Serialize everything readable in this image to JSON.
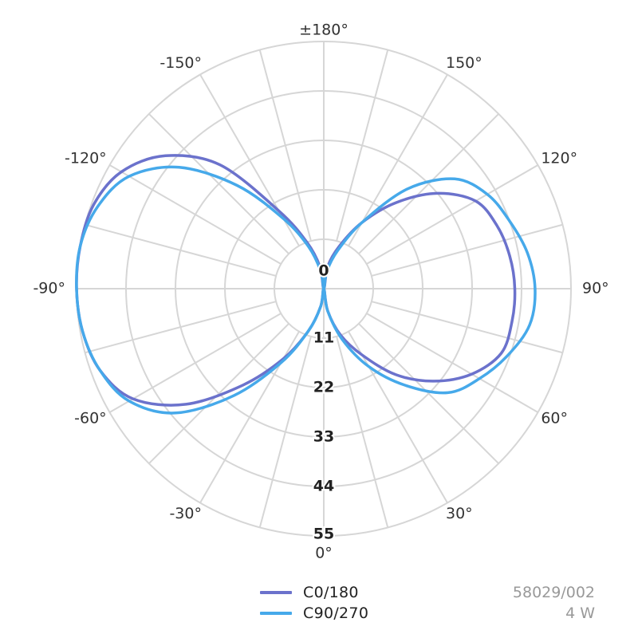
{
  "chart_data": {
    "type": "polar-line",
    "angle_labels": [
      {
        "angle": 180,
        "text": "±180°"
      },
      {
        "angle": 150,
        "text": "150°"
      },
      {
        "angle": 120,
        "text": "120°"
      },
      {
        "angle": 90,
        "text": "90°"
      },
      {
        "angle": 60,
        "text": "60°"
      },
      {
        "angle": 30,
        "text": "30°"
      },
      {
        "angle": 0,
        "text": "0°"
      },
      {
        "angle": -30,
        "text": "-30°"
      },
      {
        "angle": -60,
        "text": "-60°"
      },
      {
        "angle": -90,
        "text": "-90°"
      },
      {
        "angle": -120,
        "text": "-120°"
      },
      {
        "angle": -150,
        "text": "-150°"
      }
    ],
    "radial_ticks": [
      "0",
      "11",
      "22",
      "33",
      "44",
      "55"
    ],
    "r_max": 55,
    "grid": true,
    "series": [
      {
        "name": "C0/180",
        "color": "#6b72cc",
        "theta": [
          0,
          10,
          20,
          30,
          40,
          50,
          60,
          70,
          80,
          90,
          100,
          110,
          120,
          130,
          140,
          150,
          160,
          170,
          180,
          -170,
          -160,
          -150,
          -140,
          -130,
          -120,
          -110,
          -100,
          -90,
          -80,
          -70,
          -60,
          -50,
          -40,
          -30,
          -20,
          -10
        ],
        "r": [
          0,
          5,
          11,
          17,
          25,
          32,
          38,
          42,
          42.5,
          42.5,
          42,
          41,
          39,
          33,
          25,
          17,
          10,
          5,
          0,
          5,
          11,
          20,
          36,
          46,
          52,
          54.5,
          55,
          55,
          54.5,
          53,
          49,
          40,
          28,
          18,
          10,
          4
        ]
      },
      {
        "name": "C90/270",
        "color": "#46a9ea",
        "theta": [
          0,
          10,
          20,
          30,
          40,
          50,
          60,
          70,
          80,
          90,
          100,
          110,
          120,
          130,
          140,
          150,
          160,
          170,
          180,
          -170,
          -160,
          -150,
          -140,
          -130,
          -120,
          -110,
          -100,
          -90,
          -80,
          -70,
          -60,
          -50,
          -40,
          -30,
          -20,
          -10
        ],
        "r": [
          0,
          5,
          12,
          20,
          28,
          36,
          40,
          43.5,
          46.5,
          47,
          46,
          44,
          42,
          38,
          29,
          17,
          9,
          4,
          0,
          4,
          10,
          18,
          30,
          42,
          50,
          53.5,
          55,
          55,
          54.5,
          53,
          50,
          43,
          31,
          19,
          10,
          4
        ]
      }
    ]
  },
  "legend": [
    {
      "label": "C0/180",
      "color": "#6b72cc"
    },
    {
      "label": "C90/270",
      "color": "#46a9ea"
    }
  ],
  "info": {
    "code": "58029/002",
    "power": "4 W"
  }
}
